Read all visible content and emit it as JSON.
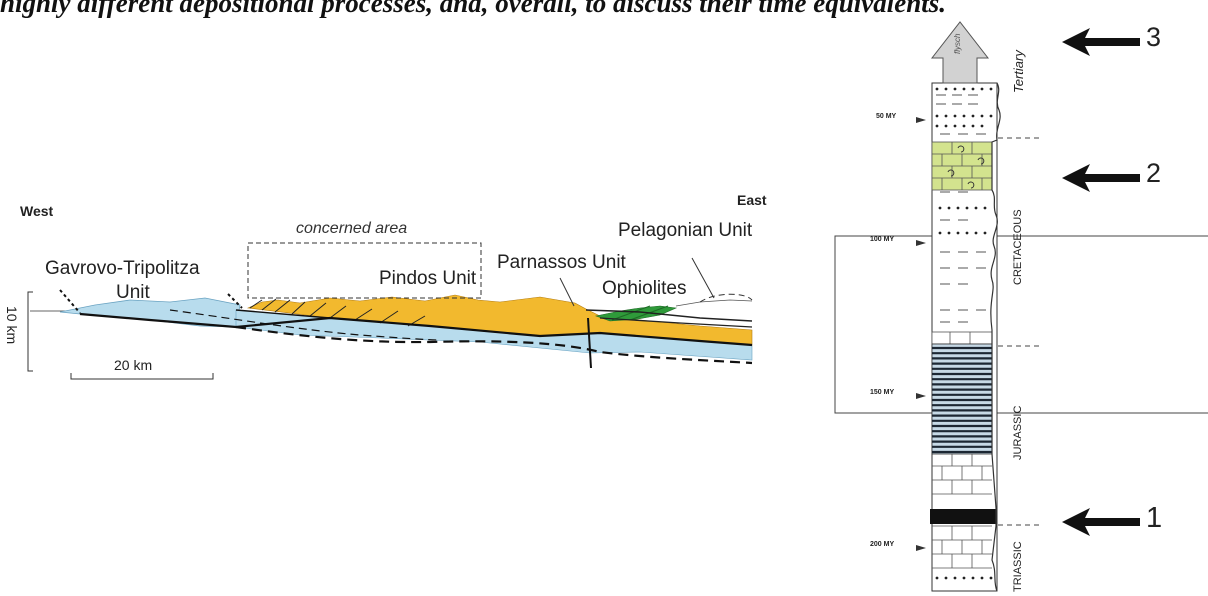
{
  "heading": "highly different depositional processes, and, overall, to discuss their time equivalents.",
  "section": {
    "west_label": "West",
    "east_label": "East",
    "concerned_area_label": "concerned area",
    "units": {
      "gavrovo_line1": "Gavrovo-Tripolitza",
      "gavrovo_line2": "Unit",
      "pindos": "Pindos Unit",
      "parnassos": "Parnassos Unit",
      "ophiolites": "Ophiolites",
      "pelagonian": "Pelagonian Unit"
    },
    "vertical_scale": "10 km",
    "horizontal_scale": "20 km",
    "colors": {
      "blue_unit": "#b8dced",
      "orange_unit": "#f2b92e",
      "ophiolite": "#2f9a3a"
    }
  },
  "column": {
    "age_labels": [
      "50 MY",
      "100 MY",
      "150 MY",
      "200 MY"
    ],
    "period_labels": [
      "Tertiary",
      "CRETACEOUS",
      "JURASSIC",
      "TRIASSIC"
    ],
    "flysch_label": "flysch",
    "arrows": [
      "3",
      "2",
      "1"
    ],
    "colors": {
      "green_interval": "#d3e38e",
      "blue_interval": "#c6d9e6"
    }
  }
}
